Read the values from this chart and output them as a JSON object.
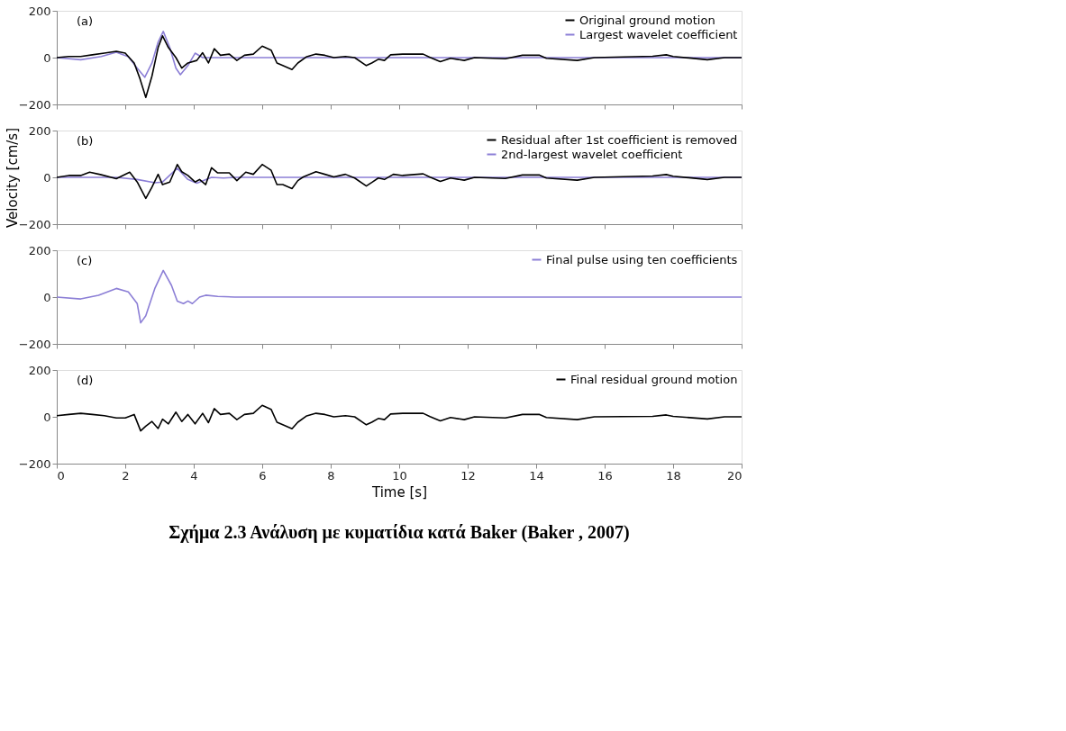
{
  "chart_data": [
    {
      "type": "line",
      "annotations": [
        "(a)"
      ],
      "legend": "top right",
      "tick_labels": "y",
      "xlim": [
        0,
        20
      ],
      "xticks": [
        0,
        2,
        4,
        6,
        8,
        10,
        12,
        14,
        16,
        18,
        20
      ],
      "ylim": [
        -200,
        200
      ],
      "yticks": [
        -200,
        0,
        200
      ],
      "grid": false,
      "line_style": "solid",
      "marker": "none",
      "series": [
        {
          "name": "Original ground motion",
          "color": "#000000",
          "x": [
            0,
            0.35,
            0.7,
            1.04,
            1.39,
            1.74,
            2.0,
            2.26,
            2.43,
            2.6,
            2.78,
            2.96,
            3.09,
            3.26,
            3.48,
            3.65,
            3.83,
            4.09,
            4.26,
            4.43,
            4.6,
            4.78,
            5.04,
            5.26,
            5.48,
            5.74,
            6.0,
            6.26,
            6.43,
            6.6,
            6.87,
            7.04,
            7.3,
            7.57,
            7.83,
            8.09,
            8.43,
            8.7,
            9.04,
            9.2,
            9.39,
            9.57,
            9.75,
            10.1,
            10.7,
            10.9,
            11.2,
            11.5,
            11.9,
            12.2,
            13.1,
            13.6,
            14.1,
            14.3,
            15.2,
            15.7,
            17.4,
            17.8,
            18.0,
            19.0,
            19.5,
            20
          ],
          "values": [
            0,
            5,
            5,
            12,
            19,
            27,
            19,
            -23,
            -90,
            -170,
            -79,
            43,
            93,
            43,
            0,
            -45,
            -23,
            -12,
            21,
            -23,
            38,
            10,
            15,
            -12,
            10,
            15,
            49,
            32,
            -23,
            -34,
            -51,
            -23,
            4,
            15,
            10,
            0,
            5,
            0,
            -34,
            -23,
            -7,
            -12,
            12,
            15,
            15,
            1,
            -17,
            -3,
            -12,
            0,
            -5,
            10,
            10,
            -3,
            -12,
            0,
            6,
            12,
            5,
            -9,
            0,
            0
          ]
        },
        {
          "name": "Largest wavelet coefficient",
          "color": "#8c7fd6",
          "x": [
            0,
            0.7,
            1.3,
            1.74,
            2.09,
            2.35,
            2.57,
            2.78,
            2.96,
            3.11,
            3.3,
            3.48,
            3.61,
            3.83,
            4.04,
            4.26,
            5.2,
            20
          ],
          "values": [
            0,
            -9,
            5,
            23,
            4,
            -45,
            -84,
            -23,
            66,
            112,
            43,
            -45,
            -73,
            -34,
            19,
            0,
            0,
            0
          ]
        }
      ]
    },
    {
      "type": "line",
      "annotations": [
        "(b)"
      ],
      "ylabel": "Velocity [cm/s]",
      "legend": "top right",
      "tick_labels": "y",
      "xlim": [
        0,
        20
      ],
      "xticks": [
        0,
        2,
        4,
        6,
        8,
        10,
        12,
        14,
        16,
        18,
        20
      ],
      "ylim": [
        -200,
        200
      ],
      "yticks": [
        -200,
        0,
        200
      ],
      "grid": false,
      "line_style": "solid",
      "marker": "none",
      "series": [
        {
          "name": "Residual after 1st coefficient is removed",
          "color": "#000000",
          "x": [
            0,
            0.35,
            0.7,
            0.96,
            1.3,
            1.74,
            2.13,
            2.35,
            2.6,
            2.78,
            2.96,
            3.09,
            3.3,
            3.52,
            3.65,
            3.83,
            4.04,
            4.17,
            4.35,
            4.52,
            4.7,
            5.04,
            5.26,
            5.52,
            5.74,
            6.0,
            6.26,
            6.43,
            6.6,
            6.87,
            7.04,
            7.2,
            7.57,
            7.83,
            8.09,
            8.43,
            8.7,
            9.04,
            9.22,
            9.39,
            9.57,
            9.83,
            10.1,
            10.7,
            10.9,
            11.2,
            11.5,
            11.9,
            12.2,
            13.1,
            13.6,
            14.1,
            14.3,
            15.2,
            15.7,
            17.4,
            17.8,
            18.0,
            19.0,
            19.5,
            20
          ],
          "values": [
            0,
            8,
            8,
            22,
            11,
            -6,
            22,
            -20,
            -90,
            -42,
            13,
            -31,
            -20,
            55,
            24,
            8,
            -20,
            -9,
            -31,
            41,
            19,
            19,
            -14,
            22,
            13,
            55,
            30,
            -31,
            -31,
            -48,
            -14,
            2,
            24,
            13,
            2,
            13,
            -3,
            -37,
            -20,
            -3,
            -9,
            13,
            8,
            15,
            1,
            -17,
            -3,
            -12,
            0,
            -5,
            10,
            10,
            -3,
            -12,
            0,
            6,
            12,
            5,
            -9,
            0,
            0
          ]
        },
        {
          "name": "2nd-largest wavelet coefficient",
          "color": "#8c7fd6",
          "x": [
            0,
            1.74,
            2.35,
            2.87,
            3.09,
            3.52,
            3.83,
            4.09,
            4.52,
            4.87,
            5.2,
            20
          ],
          "values": [
            0,
            0,
            -9,
            -23,
            -20,
            39,
            -9,
            -25,
            0,
            -3,
            0,
            0
          ]
        }
      ]
    },
    {
      "type": "line",
      "annotations": [
        "(c)"
      ],
      "legend": "top right",
      "tick_labels": "y",
      "xlim": [
        0,
        20
      ],
      "xticks": [
        0,
        2,
        4,
        6,
        8,
        10,
        12,
        14,
        16,
        18,
        20
      ],
      "ylim": [
        -200,
        200
      ],
      "yticks": [
        -200,
        0,
        200
      ],
      "grid": false,
      "line_style": "solid",
      "marker": "none",
      "series": [
        {
          "name": "Final pulse using ten coefficients",
          "color": "#8c7fd6",
          "x": [
            0,
            0.7,
            1.22,
            1.74,
            2.09,
            2.35,
            2.45,
            2.6,
            2.87,
            3.11,
            3.35,
            3.52,
            3.7,
            3.83,
            3.96,
            4.17,
            4.35,
            4.7,
            5.2,
            20
          ],
          "values": [
            0,
            -8,
            8,
            37,
            22,
            -28,
            -110,
            -80,
            39,
            114,
            50,
            -17,
            -28,
            -17,
            -28,
            0,
            8,
            3,
            0,
            0
          ]
        }
      ]
    },
    {
      "type": "line",
      "annotations": [
        "(d)",
        "Σχήμα 2.3 Ανάλυση με κυματίδια κατά Baker (Baker , 2007)"
      ],
      "xlabel": "Time [s]",
      "legend": "top right",
      "xlim": [
        0,
        20
      ],
      "xticks": [
        0,
        2,
        4,
        6,
        8,
        10,
        12,
        14,
        16,
        18,
        20
      ],
      "ylim": [
        -200,
        200
      ],
      "yticks": [
        -200,
        0,
        200
      ],
      "grid": false,
      "line_style": "solid",
      "marker": "none",
      "series": [
        {
          "name": "Final residual ground motion",
          "color": "#000000",
          "x": [
            0,
            0.35,
            0.7,
            1.04,
            1.39,
            1.74,
            2.0,
            2.26,
            2.45,
            2.6,
            2.78,
            2.96,
            3.09,
            3.26,
            3.48,
            3.65,
            3.83,
            4.04,
            4.26,
            4.43,
            4.6,
            4.78,
            5.04,
            5.26,
            5.48,
            5.74,
            6.0,
            6.26,
            6.43,
            6.6,
            6.87,
            7.04,
            7.3,
            7.57,
            7.83,
            8.09,
            8.43,
            8.7,
            9.04,
            9.2,
            9.39,
            9.57,
            9.75,
            10.1,
            10.7,
            10.9,
            11.2,
            11.5,
            11.9,
            12.2,
            13.1,
            13.6,
            14.1,
            14.3,
            15.2,
            15.7,
            17.4,
            17.8,
            18.0,
            19.0,
            19.5,
            20
          ],
          "values": [
            5,
            10,
            15,
            10,
            5,
            -5,
            -5,
            10,
            -60,
            -40,
            -20,
            -50,
            -10,
            -30,
            20,
            -20,
            10,
            -30,
            15,
            -25,
            35,
            10,
            15,
            -12,
            10,
            15,
            49,
            32,
            -23,
            -34,
            -51,
            -23,
            4,
            15,
            10,
            0,
            5,
            0,
            -34,
            -23,
            -7,
            -12,
            12,
            15,
            15,
            1,
            -17,
            -3,
            -12,
            0,
            -5,
            10,
            10,
            -3,
            -12,
            0,
            2,
            8,
            2,
            -9,
            0,
            0
          ]
        }
      ]
    }
  ]
}
